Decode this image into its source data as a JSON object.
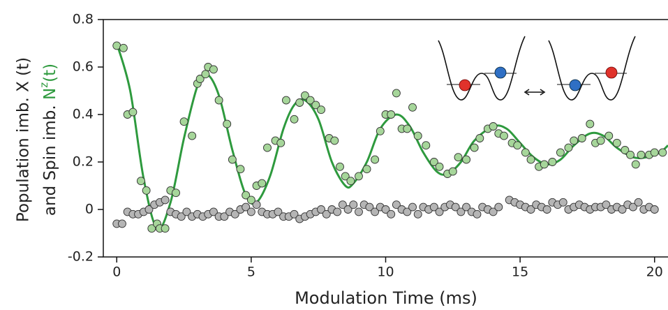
{
  "chart_data": {
    "type": "scatter",
    "xlabel": "Modulation Time (ms)",
    "ylabel": {
      "line1": "Population imb.  X (t)",
      "line2": "and Spin imb. ",
      "line2_green": "N",
      "line2_sup": "z",
      "line2_end": "(t)"
    },
    "xlim": [
      -0.5,
      20.5
    ],
    "ylim": [
      -0.2,
      0.8
    ],
    "xticks": [
      0,
      5,
      10,
      15,
      20
    ],
    "yticks": [
      -0.2,
      0,
      0.2,
      0.4,
      0.6,
      0.8
    ],
    "series": [
      {
        "type": "line",
        "color": "#2e9a3e",
        "x": [
          0,
          0.5,
          1.0,
          1.5,
          2.0,
          2.5,
          3.0,
          3.35,
          3.8,
          4.3,
          4.8,
          5.2,
          5.7,
          6.2,
          6.6,
          7.0,
          7.5,
          8.0,
          8.5,
          8.8,
          9.3,
          9.8,
          10.4,
          10.9,
          11.4,
          11.9,
          12.3,
          12.8,
          13.3,
          14.0,
          14.5,
          15.0,
          15.5,
          16.0,
          16.5,
          17.0,
          17.6,
          18.1,
          18.6,
          19.2,
          19.7,
          20.2,
          20.5
        ],
        "values": [
          0.7,
          0.5,
          0.13,
          -0.08,
          0.03,
          0.3,
          0.52,
          0.57,
          0.48,
          0.25,
          0.06,
          0.03,
          0.14,
          0.34,
          0.44,
          0.46,
          0.38,
          0.2,
          0.1,
          0.11,
          0.2,
          0.34,
          0.4,
          0.35,
          0.24,
          0.16,
          0.15,
          0.2,
          0.29,
          0.35,
          0.34,
          0.28,
          0.22,
          0.19,
          0.21,
          0.27,
          0.32,
          0.31,
          0.26,
          0.22,
          0.22,
          0.24,
          0.27
        ]
      },
      {
        "type": "scatter",
        "color": "#a6d69a",
        "x": [
          0.0,
          0.25,
          0.4,
          0.6,
          0.9,
          1.1,
          1.3,
          1.5,
          1.6,
          1.8,
          2.0,
          2.2,
          2.5,
          2.8,
          3.0,
          3.1,
          3.3,
          3.4,
          3.6,
          3.8,
          4.1,
          4.3,
          4.6,
          4.8,
          5.0,
          5.2,
          5.4,
          5.6,
          5.9,
          6.1,
          6.3,
          6.6,
          6.8,
          7.0,
          7.2,
          7.4,
          7.6,
          7.9,
          8.1,
          8.3,
          8.5,
          8.7,
          9.0,
          9.3,
          9.6,
          9.8,
          10.0,
          10.2,
          10.4,
          10.6,
          10.8,
          11.0,
          11.2,
          11.5,
          11.8,
          12.0,
          12.3,
          12.5,
          12.7,
          13.0,
          13.3,
          13.5,
          13.8,
          14.0,
          14.2,
          14.4,
          14.7,
          14.9,
          15.2,
          15.4,
          15.7,
          15.9,
          16.2,
          16.5,
          16.8,
          17.0,
          17.3,
          17.6,
          17.8,
          18.0,
          18.3,
          18.6,
          18.9,
          19.1,
          19.3,
          19.5,
          19.8,
          20.0,
          20.3
        ],
        "values": [
          0.69,
          0.68,
          0.4,
          0.41,
          0.12,
          0.08,
          -0.08,
          -0.06,
          -0.08,
          -0.08,
          0.08,
          0.07,
          0.37,
          0.31,
          0.53,
          0.55,
          0.57,
          0.6,
          0.59,
          0.46,
          0.36,
          0.21,
          0.17,
          0.06,
          0.04,
          0.1,
          0.11,
          0.26,
          0.29,
          0.28,
          0.46,
          0.38,
          0.45,
          0.48,
          0.46,
          0.44,
          0.42,
          0.3,
          0.29,
          0.18,
          0.14,
          0.12,
          0.14,
          0.17,
          0.21,
          0.33,
          0.4,
          0.4,
          0.49,
          0.34,
          0.34,
          0.43,
          0.31,
          0.27,
          0.2,
          0.18,
          0.15,
          0.16,
          0.22,
          0.21,
          0.26,
          0.3,
          0.34,
          0.35,
          0.32,
          0.31,
          0.28,
          0.27,
          0.24,
          0.21,
          0.18,
          0.19,
          0.2,
          0.24,
          0.26,
          0.29,
          0.3,
          0.36,
          0.28,
          0.29,
          0.31,
          0.28,
          0.25,
          0.23,
          0.19,
          0.23,
          0.23,
          0.24,
          0.24
        ]
      },
      {
        "type": "scatter",
        "color": "#b5b5b5",
        "x": [
          0.0,
          0.2,
          0.4,
          0.6,
          0.8,
          1.0,
          1.2,
          1.4,
          1.6,
          1.8,
          2.0,
          2.2,
          2.4,
          2.6,
          2.8,
          3.0,
          3.2,
          3.4,
          3.6,
          3.8,
          4.0,
          4.2,
          4.4,
          4.6,
          4.8,
          5.0,
          5.2,
          5.4,
          5.6,
          5.8,
          6.0,
          6.2,
          6.4,
          6.6,
          6.8,
          7.0,
          7.2,
          7.4,
          7.6,
          7.8,
          8.0,
          8.2,
          8.4,
          8.6,
          8.8,
          9.0,
          9.2,
          9.4,
          9.6,
          9.8,
          10.0,
          10.2,
          10.4,
          10.6,
          10.8,
          11.0,
          11.2,
          11.4,
          11.6,
          11.8,
          12.0,
          12.2,
          12.4,
          12.6,
          12.8,
          13.0,
          13.2,
          13.4,
          13.6,
          13.8,
          14.0,
          14.2,
          14.6,
          14.8,
          15.0,
          15.2,
          15.4,
          15.6,
          15.8,
          16.0,
          16.2,
          16.4,
          16.6,
          16.8,
          17.0,
          17.2,
          17.4,
          17.6,
          17.8,
          18.0,
          18.2,
          18.4,
          18.6,
          18.8,
          19.0,
          19.2,
          19.4,
          19.6,
          19.8,
          20.0
        ],
        "values": [
          -0.06,
          -0.06,
          -0.01,
          -0.02,
          -0.02,
          -0.01,
          0.0,
          0.02,
          0.03,
          0.04,
          -0.01,
          -0.02,
          -0.03,
          -0.01,
          -0.03,
          -0.02,
          -0.03,
          -0.02,
          -0.01,
          -0.03,
          -0.03,
          -0.01,
          -0.02,
          0.0,
          0.01,
          -0.01,
          0.02,
          -0.01,
          -0.02,
          -0.02,
          -0.01,
          -0.03,
          -0.03,
          -0.02,
          -0.04,
          -0.03,
          -0.02,
          -0.01,
          0.0,
          -0.02,
          0.0,
          -0.01,
          0.02,
          0.0,
          0.02,
          -0.01,
          0.02,
          0.01,
          -0.01,
          0.01,
          0.0,
          -0.02,
          0.02,
          0.0,
          -0.01,
          0.01,
          -0.02,
          0.01,
          0.0,
          0.01,
          -0.01,
          0.01,
          0.02,
          0.01,
          -0.01,
          0.01,
          -0.01,
          -0.02,
          0.01,
          0.0,
          -0.01,
          0.01,
          0.04,
          0.03,
          0.02,
          0.01,
          0.0,
          0.02,
          0.01,
          0.0,
          0.03,
          0.02,
          0.03,
          0.0,
          0.01,
          0.02,
          0.01,
          0.0,
          0.01,
          0.01,
          0.02,
          0.0,
          0.01,
          0.0,
          0.02,
          0.01,
          0.03,
          0.0,
          0.01,
          0.0
        ]
      }
    ]
  }
}
